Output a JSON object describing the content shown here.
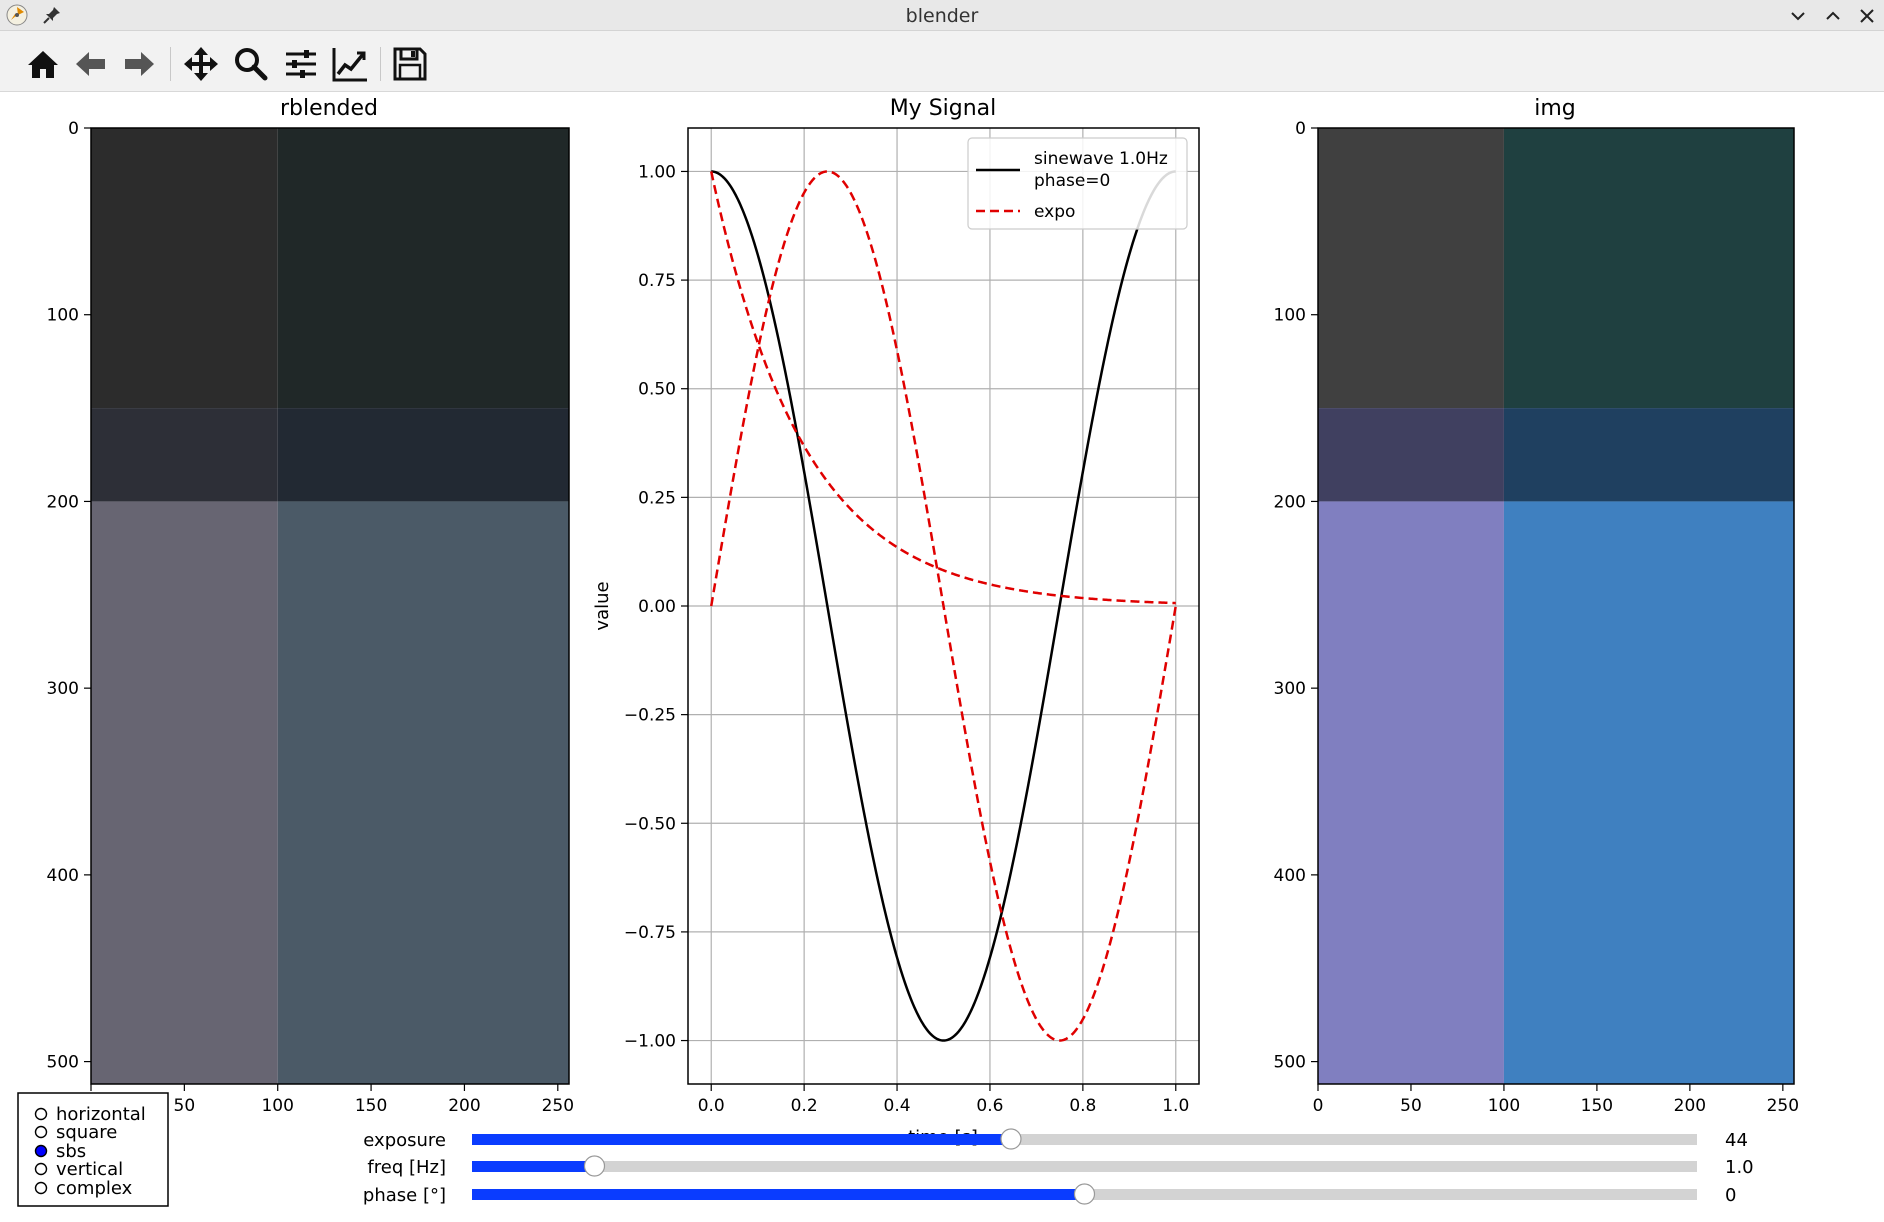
{
  "window": {
    "title": "blender"
  },
  "toolbar": {
    "icons": [
      "home-icon",
      "back-arrow-icon",
      "forward-arrow-icon",
      "move-icon",
      "zoom-icon",
      "configure-subplots-icon",
      "edit-axis-icon",
      "save-icon"
    ]
  },
  "radio": {
    "options": [
      "horizontal",
      "square",
      "sbs",
      "vertical",
      "complex"
    ],
    "selected": "sbs",
    "accent": "#0000ff"
  },
  "sliders": [
    {
      "label": "exposure",
      "value": 44,
      "value_text": "44",
      "min": 0,
      "max": 100
    },
    {
      "label": "freq [Hz]",
      "value": 1.0,
      "value_text": "1.0",
      "min": 0,
      "max": 10
    },
    {
      "label": "phase [°]",
      "value": 0,
      "value_text": "0",
      "min": -180,
      "max": 180
    }
  ],
  "chart_data": [
    {
      "type": "heatmap",
      "title": "rblended",
      "xlim": [
        0,
        256
      ],
      "ylim": [
        512,
        0
      ],
      "xticks": [
        "0",
        "50",
        "100",
        "150",
        "200",
        "250"
      ],
      "yticks": [
        "0",
        "100",
        "200",
        "300",
        "400",
        "500"
      ],
      "cells": [
        {
          "x": [
            0,
            100
          ],
          "y": [
            0,
            150
          ],
          "color": "#2c2c2c"
        },
        {
          "x": [
            100,
            256
          ],
          "y": [
            0,
            150
          ],
          "color": "#202828"
        },
        {
          "x": [
            0,
            100
          ],
          "y": [
            150,
            200
          ],
          "color": "#2d2f37"
        },
        {
          "x": [
            100,
            256
          ],
          "y": [
            150,
            200
          ],
          "color": "#222933"
        },
        {
          "x": [
            0,
            100
          ],
          "y": [
            200,
            512
          ],
          "color": "#676572"
        },
        {
          "x": [
            100,
            256
          ],
          "y": [
            200,
            512
          ],
          "color": "#4b5a67"
        }
      ]
    },
    {
      "type": "line",
      "title": "My Signal",
      "xlabel": "time [s]",
      "ylabel": "value",
      "xlim": [
        -0.05,
        1.05
      ],
      "ylim": [
        -1.1,
        1.1
      ],
      "grid": true,
      "legend": "top-right",
      "xticks": [
        "0.0",
        "0.2",
        "0.4",
        "0.6",
        "0.8",
        "1.0"
      ],
      "yticks": [
        "1.00",
        "0.75",
        "0.50",
        "0.25",
        "0.00",
        "−0.25",
        "−0.50",
        "−0.75",
        "−1.00"
      ],
      "series": [
        {
          "name": "sinewave 1.0Hz\nphase=0",
          "style": "solid",
          "color": "#000000",
          "function": "cos(2*pi*f*t)",
          "freq": 1.0
        },
        {
          "name": "expo",
          "style": "dashed",
          "color": "#e00000",
          "function": "exp(-5t)",
          "rate": 5
        },
        {
          "name": "",
          "style": "dashed",
          "color": "#e00000",
          "function": "sin(2*pi*t)"
        }
      ]
    },
    {
      "type": "heatmap",
      "title": "img",
      "xlim": [
        0,
        256
      ],
      "ylim": [
        512,
        0
      ],
      "xticks": [
        "0",
        "50",
        "100",
        "150",
        "200",
        "250"
      ],
      "yticks": [
        "0",
        "100",
        "200",
        "300",
        "400",
        "500"
      ],
      "cells": [
        {
          "x": [
            0,
            100
          ],
          "y": [
            0,
            150
          ],
          "color": "#404040"
        },
        {
          "x": [
            100,
            256
          ],
          "y": [
            0,
            150
          ],
          "color": "#1f4040"
        },
        {
          "x": [
            0,
            100
          ],
          "y": [
            150,
            200
          ],
          "color": "#404060"
        },
        {
          "x": [
            100,
            256
          ],
          "y": [
            150,
            200
          ],
          "color": "#1f4060"
        },
        {
          "x": [
            0,
            100
          ],
          "y": [
            200,
            512
          ],
          "color": "#807fc0"
        },
        {
          "x": [
            100,
            256
          ],
          "y": [
            200,
            512
          ],
          "color": "#3f80c0"
        }
      ]
    }
  ]
}
